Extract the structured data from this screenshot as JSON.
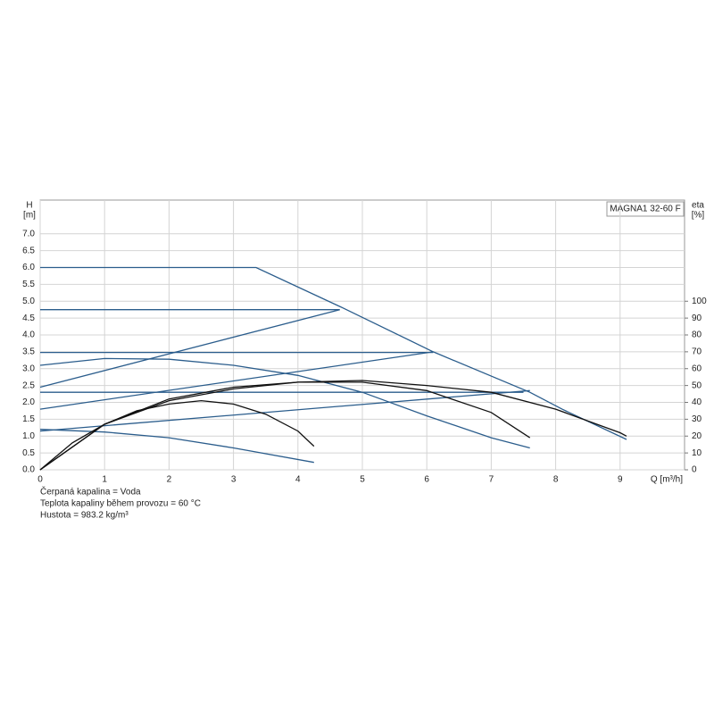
{
  "chart_data": {
    "type": "line",
    "label": "MAGNA1 32-60 F",
    "y_label": "H",
    "y_unit": "[m]",
    "y2_label": "eta",
    "y2_unit": "[%]",
    "x_label": "Q [m³/h]",
    "notes": [
      "Čerpaná kapalina = Voda",
      "Teplota kapaliny během provozu = 60 °C",
      "Hustota = 983.2 kg/m³"
    ],
    "xlim": [
      0,
      10
    ],
    "xticks": [
      0,
      1,
      2,
      3,
      4,
      5,
      6,
      7,
      8,
      9
    ],
    "ylim": [
      0,
      8
    ],
    "yticks": [
      {
        "value": 0,
        "label": "0.0"
      },
      0.5,
      {
        "value": 1,
        "label": "1.0"
      },
      1.5,
      {
        "value": 2,
        "label": "2.0"
      },
      2.5,
      {
        "value": 3,
        "label": "3.0"
      },
      3.5,
      {
        "value": 4,
        "label": "4.0"
      },
      4.5,
      {
        "value": 5,
        "label": "5.0"
      },
      5.5,
      {
        "value": 6,
        "label": "6.0"
      },
      6.5,
      {
        "value": 7,
        "label": "7.0"
      }
    ],
    "y2lim": [
      0,
      160
    ],
    "y2ticks": [
      0,
      10,
      20,
      30,
      40,
      50,
      60,
      70,
      80,
      90,
      100
    ],
    "grid": true,
    "series": [
      {
        "color": "#2b5d8c",
        "x": [
          0,
          3.35,
          4.7,
          6.1,
          7.6,
          8.1,
          9.1
        ],
        "values": [
          6.0,
          6.0,
          4.8,
          3.5,
          2.3,
          1.8,
          0.9
        ]
      },
      {
        "color": "#2b5d8c",
        "x": [
          0,
          4.65
        ],
        "values": [
          4.75,
          4.75
        ]
      },
      {
        "color": "#2b5d8c",
        "x": [
          0,
          6.1
        ],
        "values": [
          3.48,
          3.48
        ]
      },
      {
        "color": "#2b5d8c",
        "x": [
          0,
          7.5
        ],
        "values": [
          2.3,
          2.3
        ]
      },
      {
        "color": "#2b5d8c",
        "x": [
          0,
          4.65
        ],
        "values": [
          2.45,
          4.75
        ]
      },
      {
        "color": "#2b5d8c",
        "x": [
          0,
          6.1
        ],
        "values": [
          1.8,
          3.5
        ]
      },
      {
        "color": "#2b5d8c",
        "x": [
          0,
          7.6
        ],
        "values": [
          1.15,
          2.35
        ]
      },
      {
        "color": "#2b5d8c",
        "x": [
          0,
          1,
          2,
          3,
          4.25
        ],
        "values": [
          1.2,
          1.12,
          0.95,
          0.65,
          0.22
        ]
      },
      {
        "color": "#2b5d8c",
        "x": [
          0,
          1,
          2,
          3,
          4,
          5,
          6,
          7,
          7.6
        ],
        "values": [
          3.1,
          3.3,
          3.28,
          3.1,
          2.8,
          2.3,
          1.6,
          0.95,
          0.65
        ]
      },
      {
        "color": "#111111",
        "axis": "y2",
        "x": [
          0,
          0.5,
          1,
          1.5,
          2,
          2.5,
          3,
          3.5,
          4,
          4.25
        ],
        "values": [
          0,
          16,
          27,
          35,
          39,
          41,
          39,
          33,
          23,
          14
        ]
      },
      {
        "color": "#111111",
        "axis": "y2",
        "x": [
          0,
          1,
          2,
          3,
          4,
          5,
          6,
          7,
          7.6
        ],
        "values": [
          0,
          27,
          41,
          48,
          52,
          52,
          47,
          34,
          19
        ]
      },
      {
        "color": "#111111",
        "axis": "y2",
        "x": [
          0,
          1,
          2,
          3,
          4,
          5,
          6,
          7,
          8,
          9,
          9.1
        ],
        "values": [
          0,
          27,
          42,
          49,
          52,
          53,
          50,
          46,
          36,
          22,
          20
        ]
      }
    ]
  }
}
